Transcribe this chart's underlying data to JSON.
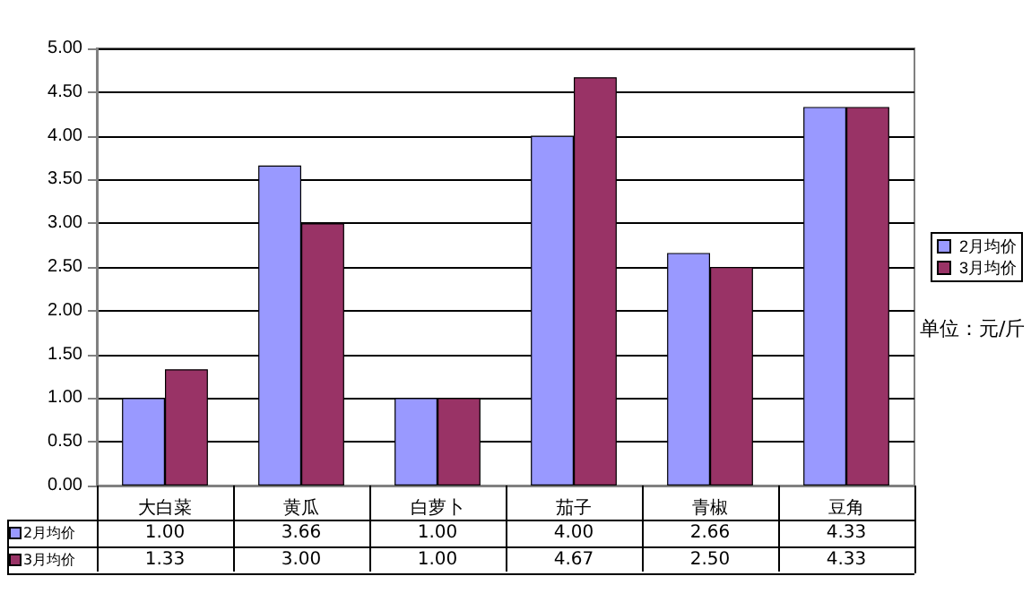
{
  "chart_data": {
    "type": "bar",
    "categories": [
      "大白菜",
      "黄瓜",
      "白萝卜",
      "茄子",
      "青椒",
      "豆角"
    ],
    "series": [
      {
        "name": "2月均价",
        "color": "#9999ff",
        "values": [
          1.0,
          3.66,
          1.0,
          4.0,
          2.66,
          4.33
        ],
        "value_labels": [
          "1.00",
          "3.66",
          "1.00",
          "4.00",
          "2.66",
          "4.33"
        ]
      },
      {
        "name": "3月均价",
        "color": "#993366",
        "values": [
          1.33,
          3.0,
          1.0,
          4.67,
          2.5,
          4.33
        ],
        "value_labels": [
          "1.33",
          "3.00",
          "1.00",
          "4.67",
          "2.50",
          "4.33"
        ]
      }
    ],
    "ylim": [
      0,
      5
    ],
    "yticks": [
      {
        "value": 0,
        "label": "0.00"
      },
      {
        "value": 0.5,
        "label": "0.50"
      },
      {
        "value": 1,
        "label": "1.00"
      },
      {
        "value": 1.5,
        "label": "1.50"
      },
      {
        "value": 2,
        "label": "2.00"
      },
      {
        "value": 2.5,
        "label": "2.50"
      },
      {
        "value": 3,
        "label": "3.00"
      },
      {
        "value": 3.5,
        "label": "3.50"
      },
      {
        "value": 4,
        "label": "4.00"
      },
      {
        "value": 4.5,
        "label": "4.50"
      },
      {
        "value": 5,
        "label": "5.00"
      }
    ],
    "grid": "y",
    "legend": "right",
    "annotations": [
      "单位：元/斤"
    ]
  }
}
